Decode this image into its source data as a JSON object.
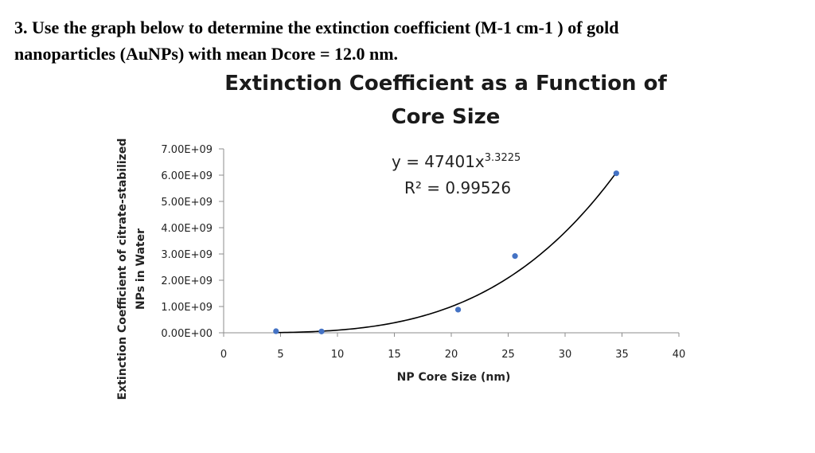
{
  "question": {
    "line1": "3. Use the graph below to determine the extinction coefficient (M-1 cm-1 ) of gold",
    "line2": "nanoparticles (AuNPs) with mean Dcore = 12.0 nm."
  },
  "chart_data": {
    "type": "scatter",
    "title_line1": "Extinction Coefficient as a Function of",
    "title_line2": "Core Size",
    "xlabel": "NP Core Size (nm)",
    "ylabel_line1": "Extinction Coefficient of citrate-stabilized",
    "ylabel_line2": "NPs in Water",
    "xlim": [
      0,
      40
    ],
    "ylim": [
      0,
      7000000000
    ],
    "xticks": [
      "0",
      "5",
      "10",
      "15",
      "20",
      "25",
      "30",
      "35",
      "40"
    ],
    "yticks": [
      "0.00E+00",
      "1.00E+09",
      "2.00E+09",
      "3.00E+09",
      "4.00E+09",
      "5.00E+09",
      "6.00E+09",
      "7.00E+09"
    ],
    "series": [
      {
        "x": [
          4.6,
          8.6,
          20.6,
          25.6,
          34.5
        ],
        "y": [
          60000000,
          50000000,
          880000000,
          2920000000,
          6070000000
        ],
        "color": "#4472c4"
      }
    ],
    "trendline": {
      "type": "power",
      "coefficient": 47401,
      "exponent": 3.3225,
      "x_range": [
        4.6,
        34.5
      ],
      "color": "#000000",
      "equation_base": "y = 47401x",
      "equation_exponent": "3.3225",
      "r_squared": "R² = 0.99526"
    },
    "grid": false
  }
}
